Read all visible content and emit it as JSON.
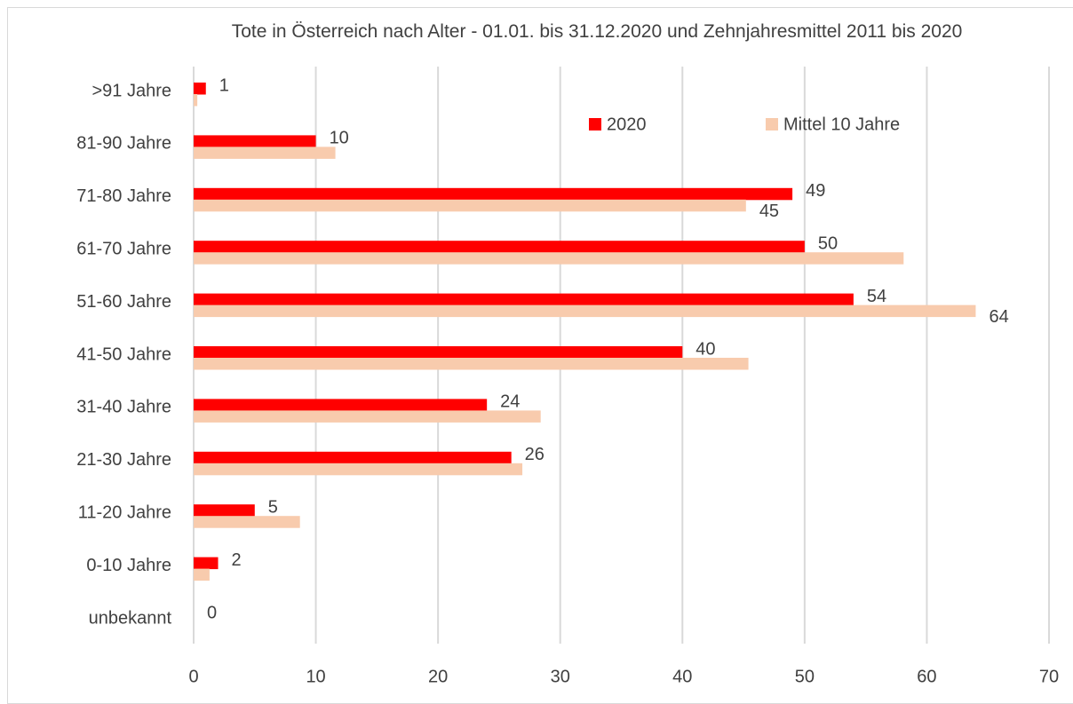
{
  "chart_data": {
    "type": "bar",
    "orientation": "horizontal",
    "title": "Tote in Österreich nach Alter - 01.01. bis 31.12.2020 und Zehnjahresmittel 2011 bis 2020",
    "categories": [
      ">91 Jahre",
      "81-90 Jahre",
      "71-80 Jahre",
      "61-70 Jahre",
      "51-60 Jahre",
      "41-50 Jahre",
      "31-40 Jahre",
      "21-30 Jahre",
      "11-20 Jahre",
      "0-10 Jahre",
      "unbekannt"
    ],
    "series": [
      {
        "name": "2020",
        "color": "#ff0000",
        "values": [
          1,
          10,
          49,
          50,
          54,
          40,
          24,
          26,
          5,
          2,
          0
        ]
      },
      {
        "name": "Mittel 10 Jahre",
        "color": "#f8cbad",
        "values": [
          0.3,
          11.6,
          45.2,
          58.1,
          64,
          45.4,
          28.4,
          26.9,
          8.7,
          1.3,
          0
        ],
        "value_labels": [
          null,
          null,
          "45",
          null,
          "64",
          null,
          null,
          null,
          null,
          null,
          null
        ]
      }
    ],
    "xlim": [
      0,
      70
    ],
    "xticks": [
      0,
      10,
      20,
      30,
      40,
      50,
      60,
      70
    ],
    "grid": true,
    "legend": "top-right"
  }
}
